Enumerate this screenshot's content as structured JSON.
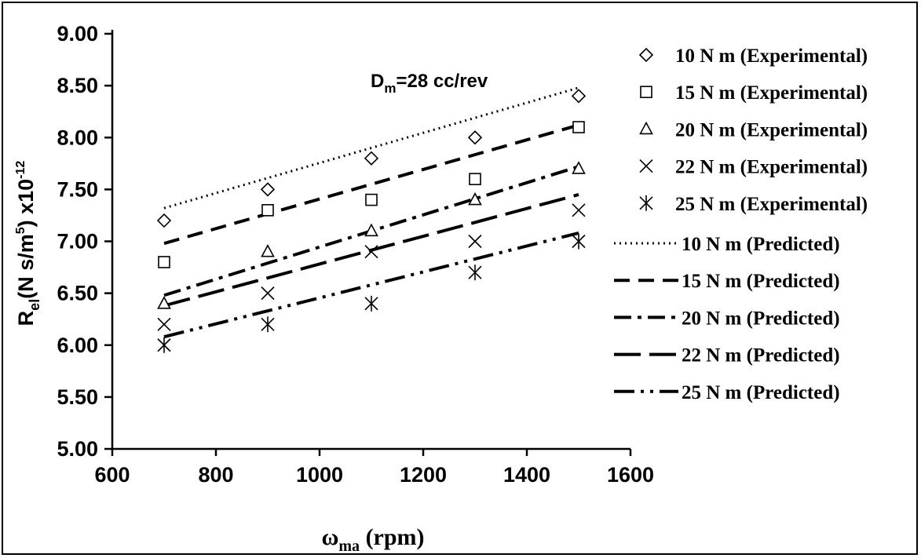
{
  "chart_data": {
    "type": "scatter",
    "title": "",
    "annotation": {
      "main": "D",
      "sub": "m",
      "rest": "=28 cc/rev"
    },
    "xlabel": {
      "main": "ω",
      "sub": "ma",
      "rest": " (rpm)"
    },
    "ylabel": {
      "r": "R",
      "sub": "el",
      "mid": "(N s/m",
      "sup": "5",
      "tail": ") x10",
      "exp": "-12"
    },
    "xlim": [
      600,
      1600
    ],
    "ylim": [
      5.0,
      9.0
    ],
    "xticks": [
      "600",
      "800",
      "1000",
      "1200",
      "1400",
      "1600"
    ],
    "yticks": [
      "5.00",
      "5.50",
      "6.00",
      "6.50",
      "7.00",
      "7.50",
      "8.00",
      "8.50",
      "9.00"
    ],
    "grid": false,
    "legend_position": "right",
    "x": [
      700,
      900,
      1100,
      1300,
      1500
    ],
    "experimental": [
      {
        "name": "10 N m (Experimental)",
        "marker": "diamond",
        "values": [
          7.2,
          7.5,
          7.8,
          8.0,
          8.4
        ]
      },
      {
        "name": "15 N m (Experimental)",
        "marker": "square",
        "values": [
          6.8,
          7.3,
          7.4,
          7.6,
          8.1
        ]
      },
      {
        "name": "20 N m (Experimental)",
        "marker": "triangle",
        "values": [
          6.4,
          6.9,
          7.1,
          7.4,
          7.7
        ]
      },
      {
        "name": "22 N m (Experimental)",
        "marker": "x",
        "values": [
          6.2,
          6.5,
          6.9,
          7.0,
          7.3
        ]
      },
      {
        "name": "25 N m (Experimental)",
        "marker": "asterisk",
        "values": [
          6.0,
          6.2,
          6.4,
          6.7,
          7.0
        ]
      }
    ],
    "predicted": [
      {
        "name": "10 N m (Predicted)",
        "dash": "dotted",
        "x": [
          700,
          1500
        ],
        "values": [
          7.32,
          8.48
        ]
      },
      {
        "name": "15 N m (Predicted)",
        "dash": "dashed",
        "x": [
          700,
          1500
        ],
        "values": [
          6.98,
          8.12
        ]
      },
      {
        "name": "20 N m (Predicted)",
        "dash": "dashdot",
        "x": [
          700,
          1500
        ],
        "values": [
          6.48,
          7.72
        ]
      },
      {
        "name": "22 N m (Predicted)",
        "dash": "longdash",
        "x": [
          700,
          1500
        ],
        "values": [
          6.38,
          7.45
        ]
      },
      {
        "name": "25 N m (Predicted)",
        "dash": "dashdotdot",
        "x": [
          700,
          1500
        ],
        "values": [
          6.08,
          7.08
        ]
      }
    ]
  }
}
